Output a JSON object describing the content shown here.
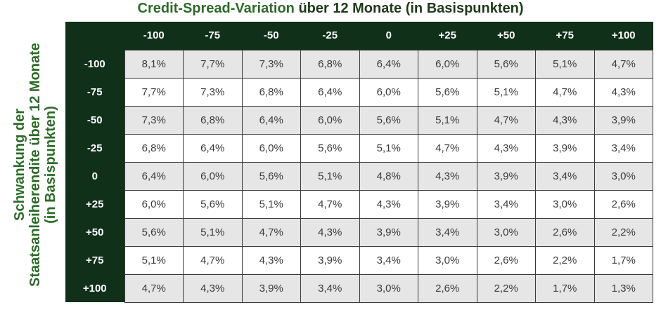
{
  "chart_data": {
    "type": "table",
    "title_accent": "Credit-Spread-Variation",
    "title_rest": " über 12 Monate (in Basispunkten)",
    "ylabel_lines": [
      "Schwankung der",
      "Staatsanleiherendite über 12 Monate",
      "(in Basispunkten)"
    ],
    "columns": [
      "-100",
      "-75",
      "-50",
      "-25",
      "0",
      "+25",
      "+50",
      "+75",
      "+100"
    ],
    "rows": [
      {
        "label": "-100",
        "values": [
          "8,1%",
          "7,7%",
          "7,3%",
          "6,8%",
          "6,4%",
          "6,0%",
          "5,6%",
          "5,1%",
          "4,7%"
        ]
      },
      {
        "label": "-75",
        "values": [
          "7,7%",
          "7,3%",
          "6,8%",
          "6,4%",
          "6,0%",
          "5,6%",
          "5,1%",
          "4,7%",
          "4,3%"
        ]
      },
      {
        "label": "-50",
        "values": [
          "7,3%",
          "6,8%",
          "6,4%",
          "6,0%",
          "5,6%",
          "5,1%",
          "4,7%",
          "4,3%",
          "3,9%"
        ]
      },
      {
        "label": "-25",
        "values": [
          "6,8%",
          "6,4%",
          "6,0%",
          "5,6%",
          "5,1%",
          "4,7%",
          "4,3%",
          "3,9%",
          "3,4%"
        ]
      },
      {
        "label": "0",
        "values": [
          "6,4%",
          "6,0%",
          "5,6%",
          "5,1%",
          "4,8%",
          "4,3%",
          "3,9%",
          "3,4%",
          "3,0%"
        ]
      },
      {
        "label": "+25",
        "values": [
          "6,0%",
          "5,6%",
          "5,1%",
          "4,7%",
          "4,3%",
          "3,9%",
          "3,4%",
          "3,0%",
          "2,6%"
        ]
      },
      {
        "label": "+50",
        "values": [
          "5,6%",
          "5,1%",
          "4,7%",
          "4,3%",
          "3,9%",
          "3,4%",
          "3,0%",
          "2,6%",
          "2,2%"
        ]
      },
      {
        "label": "+75",
        "values": [
          "5,1%",
          "4,7%",
          "4,3%",
          "3,9%",
          "3,4%",
          "3,0%",
          "2,6%",
          "2,2%",
          "1,7%"
        ]
      },
      {
        "label": "+100",
        "values": [
          "4,7%",
          "4,3%",
          "3,9%",
          "3,4%",
          "3,0%",
          "2,6%",
          "2,2%",
          "1,7%",
          "1,3%"
        ]
      }
    ]
  }
}
